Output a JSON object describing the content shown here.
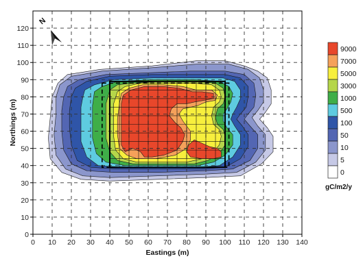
{
  "chart_data": {
    "type": "heatmap",
    "title": "",
    "xlabel": "Eastings (m)",
    "ylabel": "Northings (m)",
    "xlim": [
      0,
      140
    ],
    "ylim": [
      0,
      130
    ],
    "xticks": [
      0,
      10,
      20,
      30,
      40,
      50,
      60,
      70,
      80,
      90,
      100,
      110,
      120,
      130,
      140
    ],
    "yticks": [
      0,
      10,
      20,
      30,
      40,
      50,
      60,
      70,
      80,
      90,
      100,
      110,
      120
    ],
    "grid": "dashed",
    "north_arrow": "N",
    "legend": {
      "placement": "right",
      "unit": "gC/m2/y",
      "levels": [
        {
          "value": "9000",
          "color": "#e8472b"
        },
        {
          "value": "7000",
          "color": "#f5a15a"
        },
        {
          "value": "5000",
          "color": "#f7ef3d"
        },
        {
          "value": "3000",
          "color": "#b5d64a"
        },
        {
          "value": "1000",
          "color": "#3fae48"
        },
        {
          "value": "500",
          "color": "#5ecbe0"
        },
        {
          "value": "100",
          "color": "#2f55a8"
        },
        {
          "value": "50",
          "color": "#5366b3"
        },
        {
          "value": "10",
          "color": "#8b96cc"
        },
        {
          "value": "5",
          "color": "#c6c9e6"
        },
        {
          "value": "0",
          "color": "#ffffff"
        }
      ]
    },
    "contours": [
      {
        "level": "5",
        "color": "#c6c9e6",
        "points": [
          [
            13,
            88
          ],
          [
            18,
            93
          ],
          [
            35,
            96
          ],
          [
            62,
            98
          ],
          [
            85,
            101
          ],
          [
            100,
            101
          ],
          [
            110,
            98
          ],
          [
            117,
            95
          ],
          [
            122,
            91
          ],
          [
            124,
            84
          ],
          [
            124,
            76
          ],
          [
            121,
            71
          ],
          [
            118,
            67
          ],
          [
            122,
            62
          ],
          [
            125,
            57
          ],
          [
            125,
            48
          ],
          [
            119,
            41
          ],
          [
            108,
            34
          ],
          [
            90,
            33
          ],
          [
            65,
            32
          ],
          [
            40,
            31
          ],
          [
            25,
            32
          ],
          [
            15,
            36
          ],
          [
            9,
            44
          ],
          [
            8,
            56
          ],
          [
            9,
            68
          ],
          [
            10,
            80
          ]
        ]
      },
      {
        "level": "10",
        "color": "#8b96cc",
        "points": [
          [
            14,
            87
          ],
          [
            20,
            92
          ],
          [
            36,
            95
          ],
          [
            62,
            97
          ],
          [
            85,
            99
          ],
          [
            102,
            99
          ],
          [
            112,
            96
          ],
          [
            118,
            91
          ],
          [
            120,
            84
          ],
          [
            120,
            77
          ],
          [
            117,
            72
          ],
          [
            114,
            68
          ],
          [
            117,
            63
          ],
          [
            121,
            58
          ],
          [
            121,
            49
          ],
          [
            116,
            42
          ],
          [
            106,
            36
          ],
          [
            90,
            35
          ],
          [
            65,
            34
          ],
          [
            40,
            33
          ],
          [
            26,
            34
          ],
          [
            17,
            38
          ],
          [
            12,
            46
          ],
          [
            11,
            58
          ],
          [
            12,
            70
          ],
          [
            12,
            80
          ]
        ]
      },
      {
        "level": "50",
        "color": "#5366b3",
        "points": [
          [
            18,
            86
          ],
          [
            24,
            90
          ],
          [
            38,
            93
          ],
          [
            60,
            94
          ],
          [
            82,
            95
          ],
          [
            100,
            95
          ],
          [
            110,
            93
          ],
          [
            115,
            88
          ],
          [
            116,
            81
          ],
          [
            115,
            74
          ],
          [
            112,
            70
          ],
          [
            110,
            67
          ],
          [
            113,
            63
          ],
          [
            117,
            58
          ],
          [
            117,
            50
          ],
          [
            113,
            43
          ],
          [
            104,
            38
          ],
          [
            90,
            37
          ],
          [
            65,
            36
          ],
          [
            42,
            36
          ],
          [
            28,
            37
          ],
          [
            20,
            41
          ],
          [
            16,
            49
          ],
          [
            15,
            60
          ],
          [
            15,
            72
          ],
          [
            16,
            80
          ]
        ]
      },
      {
        "level": "100",
        "color": "#2f55a8",
        "points": [
          [
            22,
            85
          ],
          [
            28,
            89
          ],
          [
            40,
            92
          ],
          [
            62,
            93
          ],
          [
            84,
            93
          ],
          [
            100,
            93
          ],
          [
            108,
            91
          ],
          [
            112,
            86
          ],
          [
            112,
            80
          ],
          [
            111,
            74
          ],
          [
            108,
            70
          ],
          [
            106,
            67
          ],
          [
            109,
            63
          ],
          [
            112,
            58
          ],
          [
            112,
            51
          ],
          [
            108,
            44
          ],
          [
            100,
            39
          ],
          [
            88,
            38
          ],
          [
            65,
            38
          ],
          [
            44,
            38
          ],
          [
            30,
            39
          ],
          [
            23,
            43
          ],
          [
            20,
            52
          ],
          [
            19,
            62
          ],
          [
            19,
            72
          ],
          [
            20,
            80
          ]
        ]
      },
      {
        "level": "500",
        "color": "#5ecbe0",
        "points": [
          [
            27,
            84
          ],
          [
            32,
            87
          ],
          [
            42,
            90
          ],
          [
            62,
            91
          ],
          [
            84,
            91
          ],
          [
            99,
            91
          ],
          [
            105,
            89
          ],
          [
            108,
            84
          ],
          [
            108,
            79
          ],
          [
            106,
            74
          ],
          [
            104,
            70
          ],
          [
            103,
            67
          ],
          [
            105,
            63
          ],
          [
            108,
            58
          ],
          [
            108,
            52
          ],
          [
            104,
            45
          ],
          [
            97,
            40
          ],
          [
            87,
            39
          ],
          [
            65,
            39
          ],
          [
            46,
            39
          ],
          [
            34,
            40
          ],
          [
            28,
            45
          ],
          [
            25,
            54
          ],
          [
            25,
            64
          ],
          [
            25,
            74
          ],
          [
            26,
            80
          ]
        ]
      },
      {
        "level": "1000",
        "color": "#3fae48",
        "points": [
          [
            32,
            83
          ],
          [
            36,
            86
          ],
          [
            44,
            89
          ],
          [
            62,
            90
          ],
          [
            84,
            90
          ],
          [
            97,
            89
          ],
          [
            102,
            86
          ],
          [
            104,
            82
          ],
          [
            103,
            77
          ],
          [
            101,
            73
          ],
          [
            99,
            70
          ],
          [
            99,
            66
          ],
          [
            101,
            62
          ],
          [
            104,
            58
          ],
          [
            104,
            52
          ],
          [
            100,
            46
          ],
          [
            94,
            42
          ],
          [
            86,
            40
          ],
          [
            65,
            40
          ],
          [
            48,
            40
          ],
          [
            38,
            42
          ],
          [
            33,
            47
          ],
          [
            31,
            56
          ],
          [
            31,
            66
          ],
          [
            31,
            75
          ]
        ]
      },
      {
        "level": "3000",
        "color": "#b5d64a",
        "points": [
          [
            40,
            84
          ],
          [
            44,
            87
          ],
          [
            52,
            88
          ],
          [
            66,
            89
          ],
          [
            84,
            89
          ],
          [
            95,
            88
          ],
          [
            99,
            85
          ],
          [
            100,
            80
          ],
          [
            99,
            76
          ],
          [
            96,
            73
          ],
          [
            95,
            68
          ],
          [
            96,
            64
          ],
          [
            99,
            61
          ],
          [
            100,
            57
          ],
          [
            100,
            52
          ],
          [
            97,
            47
          ],
          [
            91,
            43
          ],
          [
            84,
            41
          ],
          [
            66,
            41
          ],
          [
            52,
            41
          ],
          [
            44,
            43
          ],
          [
            40,
            48
          ],
          [
            38,
            56
          ],
          [
            38,
            66
          ],
          [
            38,
            76
          ]
        ]
      },
      {
        "level": "5000",
        "color": "#f7ef3d",
        "points": [
          [
            44,
            83
          ],
          [
            48,
            86
          ],
          [
            56,
            88
          ],
          [
            70,
            88
          ],
          [
            84,
            88
          ],
          [
            93,
            87
          ],
          [
            97,
            84
          ],
          [
            98,
            80
          ],
          [
            97,
            77
          ],
          [
            94,
            74
          ],
          [
            93,
            69
          ],
          [
            94,
            64
          ],
          [
            97,
            61
          ],
          [
            98,
            57
          ],
          [
            97,
            52
          ],
          [
            94,
            48
          ],
          [
            88,
            44
          ],
          [
            80,
            42
          ],
          [
            66,
            42
          ],
          [
            54,
            42
          ],
          [
            47,
            44
          ],
          [
            43,
            49
          ],
          [
            42,
            57
          ],
          [
            42,
            66
          ],
          [
            42,
            76
          ]
        ]
      },
      {
        "level": "7000",
        "color": "#f5a15a",
        "points": [
          [
            46,
            82
          ],
          [
            50,
            85
          ],
          [
            57,
            87
          ],
          [
            68,
            87
          ],
          [
            78,
            86
          ],
          [
            85,
            84
          ],
          [
            93,
            84
          ],
          [
            96,
            81
          ],
          [
            95,
            78
          ],
          [
            90,
            77
          ],
          [
            86,
            75
          ],
          [
            82,
            74
          ],
          [
            78,
            73
          ],
          [
            76,
            70
          ],
          [
            78,
            66
          ],
          [
            80,
            63
          ],
          [
            82,
            60
          ],
          [
            82,
            55
          ],
          [
            80,
            50
          ],
          [
            74,
            46
          ],
          [
            64,
            44
          ],
          [
            54,
            44
          ],
          [
            49,
            46
          ],
          [
            45,
            50
          ],
          [
            44,
            58
          ],
          [
            44,
            67
          ],
          [
            45,
            76
          ]
        ]
      },
      {
        "level": "9000",
        "color": "#e8472b",
        "points": [
          [
            47,
            81
          ],
          [
            51,
            84
          ],
          [
            58,
            86
          ],
          [
            68,
            86
          ],
          [
            76,
            85
          ],
          [
            83,
            83
          ],
          [
            88,
            83
          ],
          [
            94,
            82
          ],
          [
            94,
            79
          ],
          [
            89,
            78
          ],
          [
            84,
            77
          ],
          [
            80,
            76
          ],
          [
            75,
            76
          ],
          [
            72,
            73
          ],
          [
            71,
            69
          ],
          [
            74,
            65
          ],
          [
            77,
            62
          ],
          [
            79,
            58
          ],
          [
            78,
            54
          ],
          [
            75,
            49
          ],
          [
            68,
            46
          ],
          [
            62,
            45
          ],
          [
            58,
            45
          ],
          [
            56,
            48
          ],
          [
            52,
            50
          ],
          [
            48,
            48
          ],
          [
            46,
            52
          ],
          [
            46,
            60
          ],
          [
            46,
            68
          ],
          [
            46,
            76
          ]
        ]
      },
      {
        "level": "9000",
        "color": "#e8472b",
        "points": [
          [
            84,
            55
          ],
          [
            88,
            53
          ],
          [
            92,
            51
          ],
          [
            96,
            50
          ],
          [
            98,
            48
          ],
          [
            98,
            45
          ],
          [
            94,
            44
          ],
          [
            88,
            44
          ],
          [
            82,
            45
          ],
          [
            80,
            48
          ],
          [
            81,
            52
          ]
        ]
      }
    ],
    "grid_rectangle": {
      "x": [
        40,
        100
      ],
      "y": [
        39,
        89
      ],
      "step": 5
    },
    "dashed_outline": [
      [
        36,
        88
      ],
      [
        102,
        88
      ],
      [
        102,
        39
      ],
      [
        36,
        39
      ]
    ]
  }
}
